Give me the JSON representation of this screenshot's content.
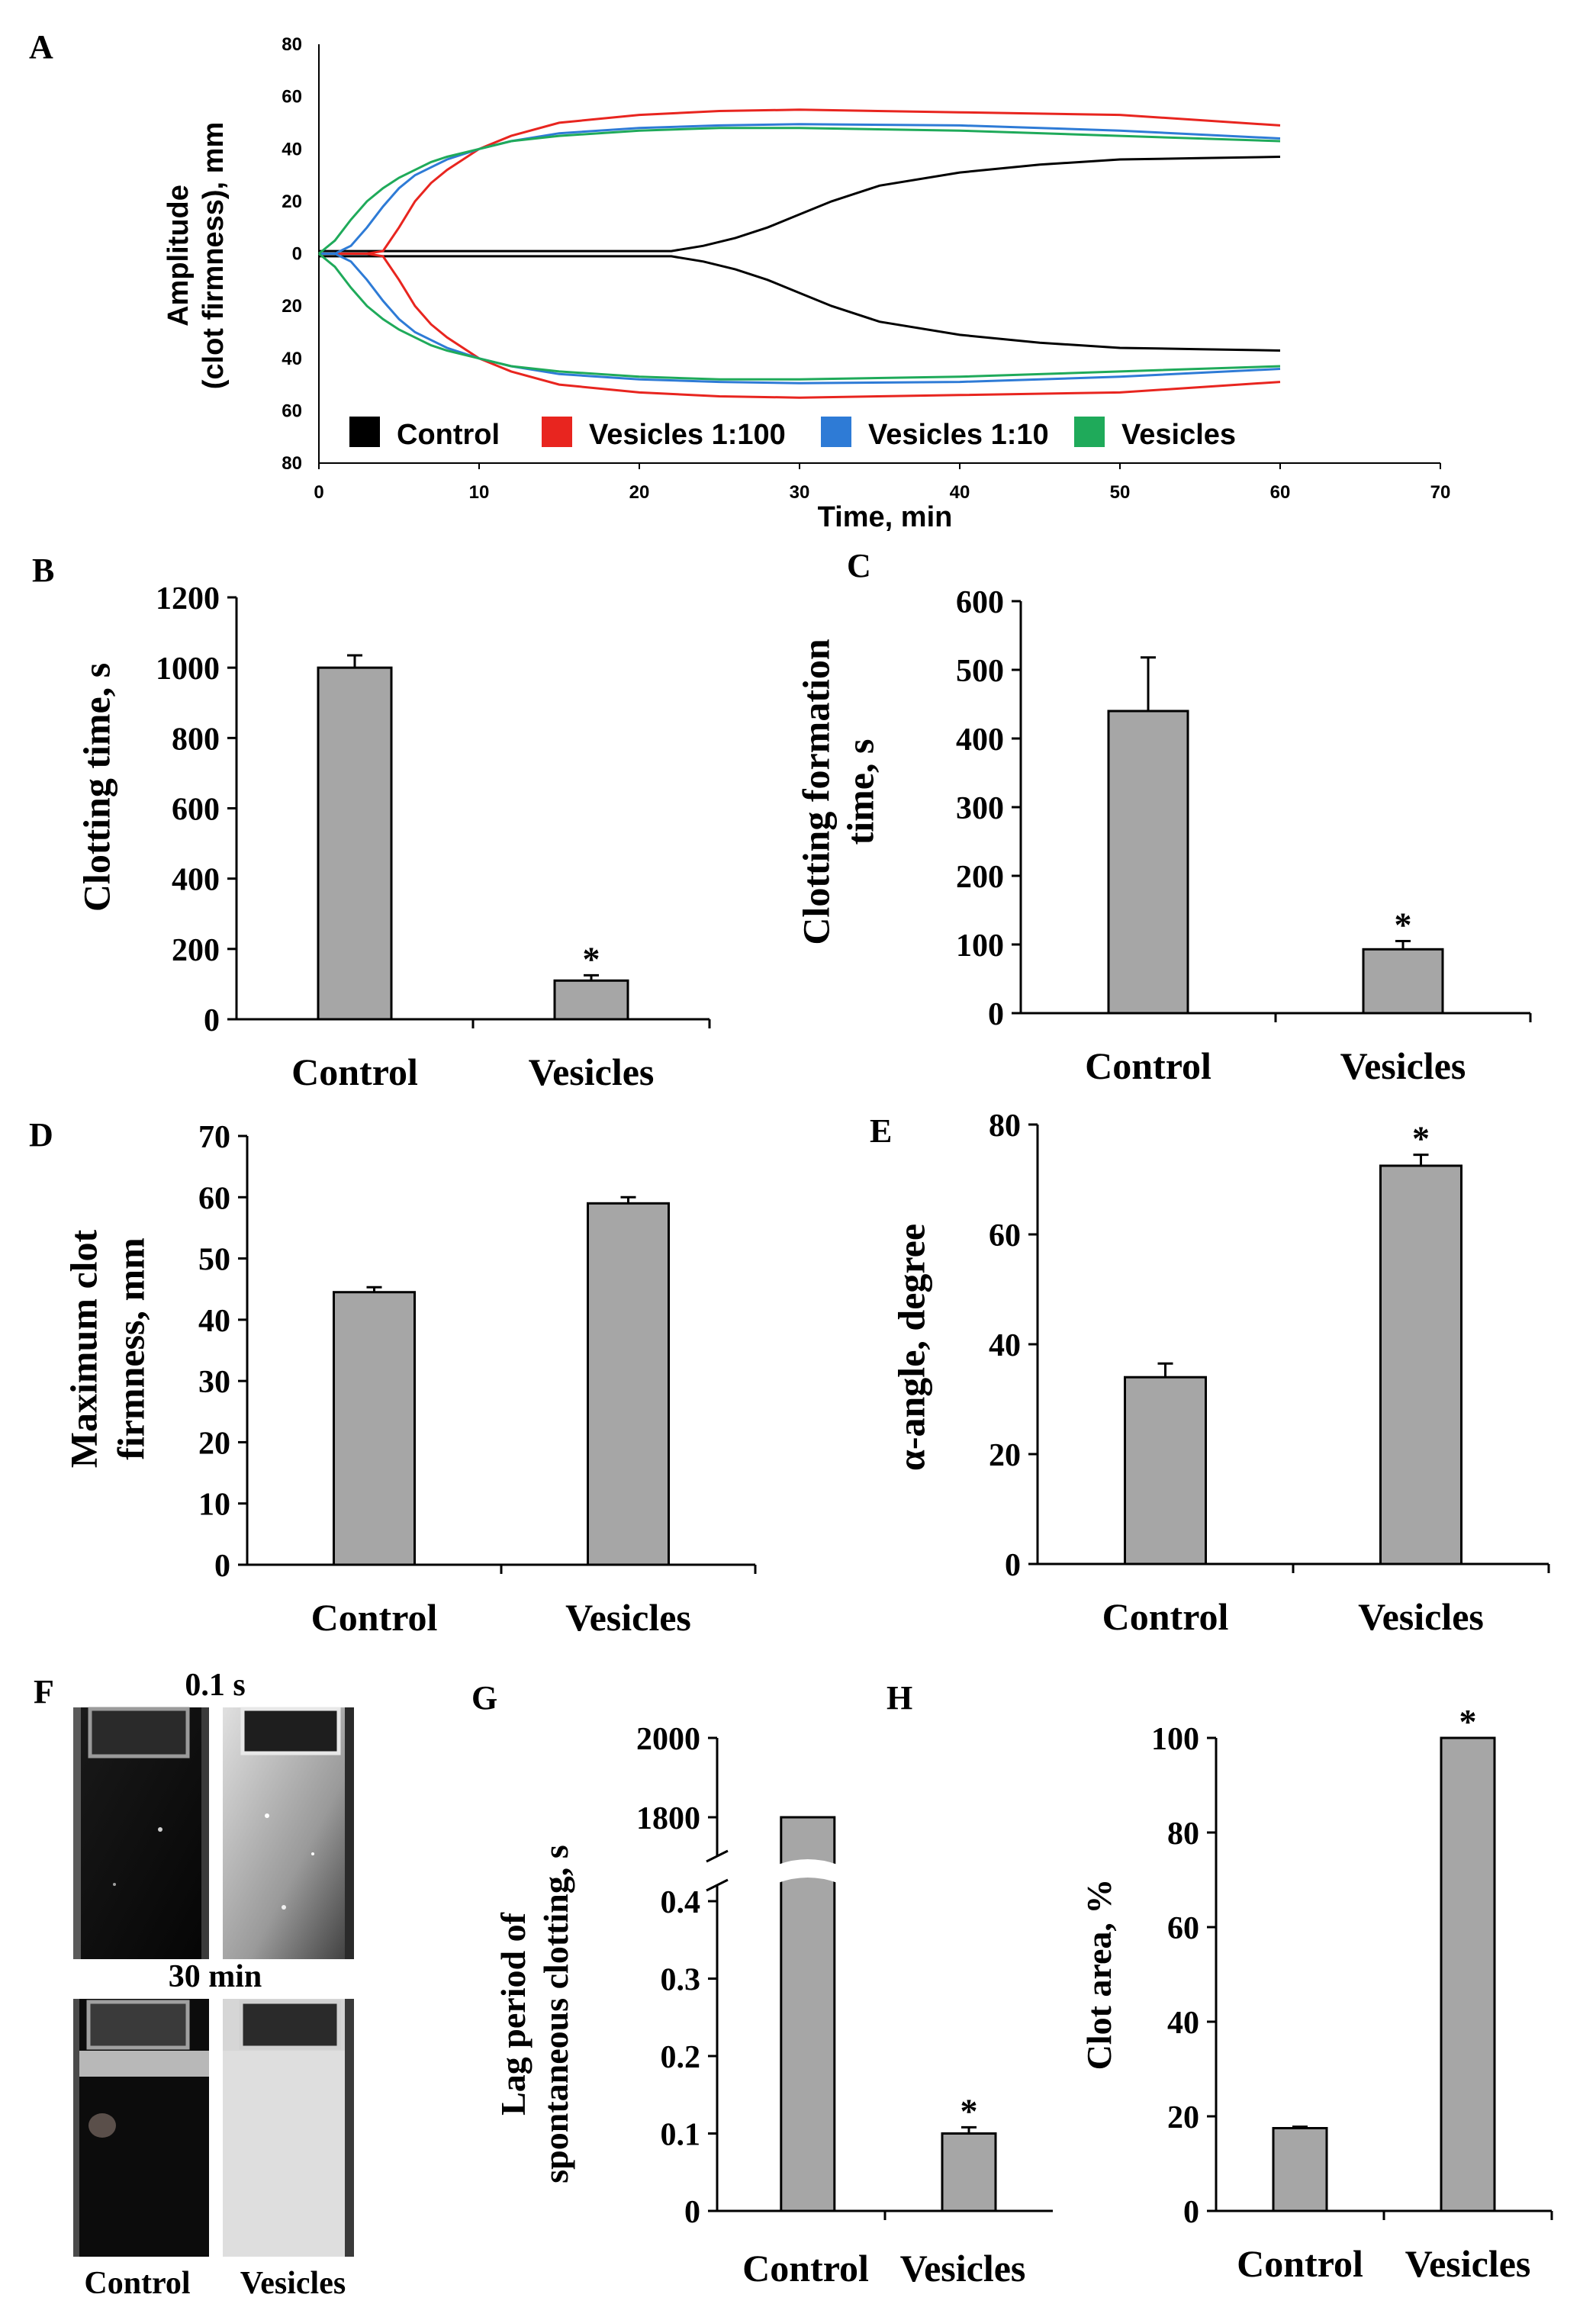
{
  "panels": {
    "A": {
      "letter": "A"
    },
    "B": {
      "letter": "B"
    },
    "C": {
      "letter": "C"
    },
    "D": {
      "letter": "D"
    },
    "E": {
      "letter": "E"
    },
    "F": {
      "letter": "F"
    },
    "G": {
      "letter": "G"
    },
    "H": {
      "letter": "H"
    }
  },
  "photos": {
    "top_label": "0.1 s",
    "bottom_label": "30 min",
    "col_labels": [
      "Control",
      "Vesicles"
    ]
  },
  "chart_data": [
    {
      "id": "A",
      "type": "line",
      "xlabel": "Time, min",
      "ylabel": "Amplitude\n(clot firmness), mm",
      "xlim": [
        0,
        70
      ],
      "xticks": [
        0,
        10,
        20,
        30,
        40,
        50,
        60,
        70
      ],
      "ylim": [
        -80,
        80
      ],
      "ytick_values": [
        80,
        60,
        40,
        20,
        0,
        -20,
        -40,
        -60,
        -80
      ],
      "ytick_labels": [
        "80",
        "60",
        "40",
        "20",
        "0",
        "20",
        "40",
        "60",
        "80"
      ],
      "legend": "bottom-inside",
      "series": [
        {
          "name": "Control",
          "color": "#000000",
          "x": [
            0,
            22,
            24,
            26,
            28,
            30,
            32,
            35,
            40,
            45,
            50,
            55,
            60
          ],
          "y": [
            1,
            1,
            3,
            6,
            10,
            15,
            20,
            26,
            31,
            34,
            36,
            36.5,
            37
          ]
        },
        {
          "name": "Vesicles 1:100",
          "color": "#e8251f",
          "x": [
            0,
            3,
            4,
            5,
            6,
            7,
            8,
            10,
            12,
            15,
            20,
            25,
            30,
            40,
            50,
            55,
            60
          ],
          "y": [
            0,
            0,
            1,
            10,
            20,
            27,
            32,
            40,
            45,
            50,
            53,
            54.5,
            55,
            54,
            53,
            51,
            49
          ]
        },
        {
          "name": "Vesicles 1:10",
          "color": "#2e7bd6",
          "x": [
            0,
            1,
            2,
            3,
            4,
            5,
            6,
            7,
            8,
            10,
            12,
            15,
            20,
            25,
            30,
            40,
            50,
            60
          ],
          "y": [
            0,
            0,
            3,
            10,
            18,
            25,
            30,
            33,
            36,
            40,
            43,
            46,
            48,
            49,
            49.5,
            49,
            47,
            44
          ]
        },
        {
          "name": "Vesicles",
          "color": "#1faa5a",
          "x": [
            0,
            1,
            2,
            3,
            4,
            5,
            6,
            7,
            8,
            10,
            12,
            15,
            20,
            25,
            30,
            40,
            50,
            60
          ],
          "y": [
            0,
            5,
            13,
            20,
            25,
            29,
            32,
            35,
            37,
            40,
            43,
            45,
            47,
            48,
            48,
            47,
            45,
            43
          ]
        }
      ]
    },
    {
      "id": "B",
      "type": "bar",
      "categories": [
        "Control",
        "Vesicles"
      ],
      "values": [
        1000,
        110
      ],
      "errors": [
        35,
        15
      ],
      "significance": [
        "",
        "*"
      ],
      "ylabel": "Clotting time, s",
      "ylim": [
        0,
        1200
      ],
      "yticks": [
        0,
        200,
        400,
        600,
        800,
        1000,
        1200
      ]
    },
    {
      "id": "C",
      "type": "bar",
      "categories": [
        "Control",
        "Vesicles"
      ],
      "values": [
        440,
        93
      ],
      "errors": [
        78,
        12
      ],
      "significance": [
        "",
        "*"
      ],
      "ylabel": "Clotting formation\ntime, s",
      "ylim": [
        0,
        600
      ],
      "yticks": [
        0,
        100,
        200,
        300,
        400,
        500,
        600
      ]
    },
    {
      "id": "D",
      "type": "bar",
      "categories": [
        "Control",
        "Vesicles"
      ],
      "values": [
        44.5,
        59
      ],
      "errors": [
        0.8,
        1.0
      ],
      "significance": [
        "",
        ""
      ],
      "ylabel": "Maximum clot\nfirmness, mm",
      "ylim": [
        0,
        70
      ],
      "yticks": [
        0,
        10,
        20,
        30,
        40,
        50,
        60,
        70
      ]
    },
    {
      "id": "E",
      "type": "bar",
      "categories": [
        "Control",
        "Vesicles"
      ],
      "values": [
        34,
        72.5
      ],
      "errors": [
        2.5,
        2.0
      ],
      "significance": [
        "",
        "*"
      ],
      "ylabel": "α-angle, degree",
      "ylim": [
        0,
        80
      ],
      "yticks": [
        0,
        20,
        40,
        60,
        80
      ]
    },
    {
      "id": "G",
      "type": "bar",
      "categories": [
        "Control",
        "Vesicles"
      ],
      "values": [
        1800,
        0.1
      ],
      "errors": [
        0,
        0.008
      ],
      "significance": [
        "",
        "*"
      ],
      "ylabel": "Lag period of\nspontaneous clotting, s",
      "axis_break": "between 0.4 and 1800",
      "yticks_lower": [
        0,
        0.1,
        0.2,
        0.3,
        0.4
      ],
      "yticks_upper": [
        1800,
        2000
      ]
    },
    {
      "id": "H",
      "type": "bar",
      "categories": [
        "Control",
        "Vesicles"
      ],
      "values": [
        17.5,
        100
      ],
      "errors": [
        0.3,
        0
      ],
      "significance": [
        "",
        "*"
      ],
      "ylabel": "Clot area, %",
      "ylim": [
        0,
        100
      ],
      "yticks": [
        0,
        20,
        40,
        60,
        80,
        100
      ]
    }
  ]
}
